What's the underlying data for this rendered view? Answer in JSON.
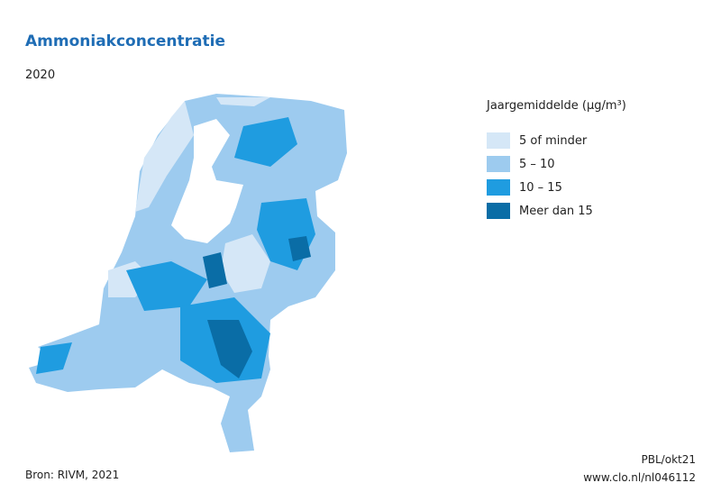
{
  "header": {
    "title": "Ammoniakconcentratie",
    "subtitle": "2020"
  },
  "legend": {
    "title": "Jaargemiddelde (µg/m³)",
    "items": [
      {
        "label": "5 of minder",
        "color": "#d5e7f7"
      },
      {
        "label": "5 – 10",
        "color": "#9dcbef"
      },
      {
        "label": "10 – 15",
        "color": "#1f9ce0"
      },
      {
        "label": "Meer dan 15",
        "color": "#0a6da6"
      }
    ]
  },
  "footer": {
    "source": "Bron: RIVM, 2021",
    "credit": "PBL/okt21",
    "url": "www.clo.nl/nl046112"
  }
}
